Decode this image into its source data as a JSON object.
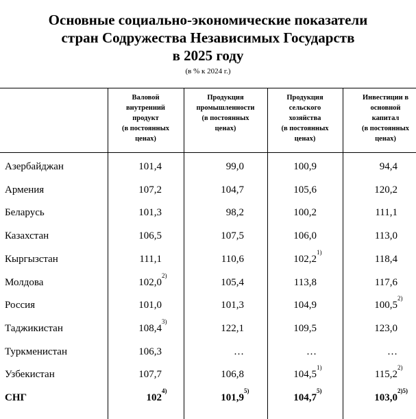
{
  "header": {
    "title": [
      "Основные социально-экономические показатели",
      "стран Содружества Независимых Государств",
      "в 2025 году"
    ],
    "subtitle": "(в % к 2024 г.)"
  },
  "table": {
    "columns": [
      {
        "lines": [
          "Валовой",
          "внутренний",
          "продукт",
          "(в постоянных",
          "ценах)"
        ]
      },
      {
        "lines": [
          "Продукция",
          "промышленности",
          "(в постоянных",
          "ценах)"
        ]
      },
      {
        "lines": [
          "Продукция",
          "сельского",
          "хозяйства",
          "(в постоянных",
          "ценах)"
        ]
      },
      {
        "lines": [
          "Инвестиции в",
          "основной",
          "капитал",
          "(в постоянных",
          "ценах)"
        ]
      }
    ],
    "rows": [
      {
        "label": "Азербайджан",
        "cells": [
          {
            "value": "101,4"
          },
          {
            "value": "99,0"
          },
          {
            "value": "100,9"
          },
          {
            "value": "94,4"
          }
        ]
      },
      {
        "label": "Армения",
        "cells": [
          {
            "value": "107,2"
          },
          {
            "value": "104,7"
          },
          {
            "value": "105,6"
          },
          {
            "value": "120,2"
          }
        ]
      },
      {
        "label": "Беларусь",
        "cells": [
          {
            "value": "101,3"
          },
          {
            "value": "98,2"
          },
          {
            "value": "100,2"
          },
          {
            "value": "111,1"
          }
        ]
      },
      {
        "label": "Казахстан",
        "cells": [
          {
            "value": "106,5"
          },
          {
            "value": "107,5"
          },
          {
            "value": "106,0"
          },
          {
            "value": "113,0"
          }
        ]
      },
      {
        "label": "Кыргызстан",
        "cells": [
          {
            "value": "111,1"
          },
          {
            "value": "110,6"
          },
          {
            "value": "102,2",
            "note": "1)"
          },
          {
            "value": "118,4"
          }
        ]
      },
      {
        "label": "Молдова",
        "cells": [
          {
            "value": "102,0",
            "note": "2)"
          },
          {
            "value": "105,4"
          },
          {
            "value": "113,8"
          },
          {
            "value": "117,6"
          }
        ]
      },
      {
        "label": "Россия",
        "cells": [
          {
            "value": "101,0"
          },
          {
            "value": "101,3"
          },
          {
            "value": "104,9"
          },
          {
            "value": "100,5",
            "note": "2)"
          }
        ]
      },
      {
        "label": "Таджикистан",
        "cells": [
          {
            "value": "108,4",
            "note": "3)"
          },
          {
            "value": "122,1"
          },
          {
            "value": "109,5"
          },
          {
            "value": "123,0"
          }
        ]
      },
      {
        "label": "Туркменистан",
        "cells": [
          {
            "value": "106,3"
          },
          {
            "value": "…"
          },
          {
            "value": "…"
          },
          {
            "value": "…"
          }
        ]
      },
      {
        "label": "Узбекистан",
        "cells": [
          {
            "value": "107,7"
          },
          {
            "value": "106,8"
          },
          {
            "value": "104,5",
            "note": "1)"
          },
          {
            "value": "115,2",
            "note": "2)"
          }
        ]
      },
      {
        "label": "СНГ",
        "bold": true,
        "cells": [
          {
            "value": "102",
            "note": "4)"
          },
          {
            "value": "101,9",
            "note": "5)"
          },
          {
            "value": "104,7",
            "note": "5)"
          },
          {
            "value": "103,0",
            "note": "2)5)"
          }
        ]
      }
    ]
  }
}
